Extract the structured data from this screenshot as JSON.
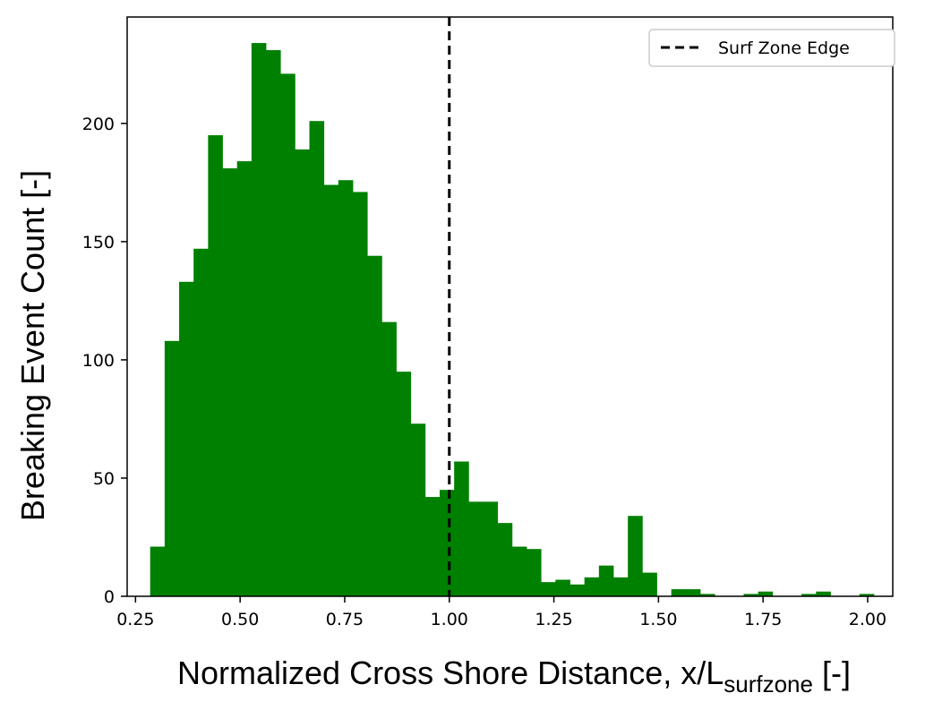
{
  "chart_data": {
    "type": "bar",
    "subtype": "histogram",
    "xlabel": {
      "main": "Normalized Cross Shore Distance, x/L",
      "subscript": "surfzone",
      "suffix": " [-]"
    },
    "ylabel": "Breaking Event Count [-]",
    "xlim": [
      0.23,
      2.06
    ],
    "ylim": [
      0,
      245
    ],
    "xticks": [
      0.25,
      0.5,
      0.75,
      1.0,
      1.25,
      1.5,
      1.75,
      2.0
    ],
    "xtick_labels": [
      "0.25",
      "0.50",
      "0.75",
      "1.00",
      "1.25",
      "1.50",
      "1.75",
      "2.00"
    ],
    "yticks": [
      0,
      50,
      100,
      150,
      200
    ],
    "ytick_labels": [
      "0",
      "50",
      "100",
      "150",
      "200"
    ],
    "grid": false,
    "bar_color": "#008000",
    "bin_start": 0.285,
    "bin_width": 0.0346,
    "values": [
      21,
      108,
      133,
      147,
      195,
      181,
      184,
      234,
      231,
      221,
      189,
      201,
      174,
      176,
      171,
      144,
      116,
      95,
      73,
      42,
      45,
      57,
      40,
      40,
      31,
      21,
      20,
      6,
      7,
      5,
      8,
      13,
      8,
      34,
      10,
      0,
      3,
      3,
      1,
      0,
      0,
      1,
      2,
      0,
      0,
      1,
      2,
      0,
      0,
      1
    ],
    "vline": {
      "x": 1.0,
      "style": "dashed",
      "color": "#000000",
      "label": "Surf Zone Edge"
    },
    "legend": {
      "position": "top-right",
      "entries": [
        "Surf Zone Edge"
      ]
    }
  }
}
